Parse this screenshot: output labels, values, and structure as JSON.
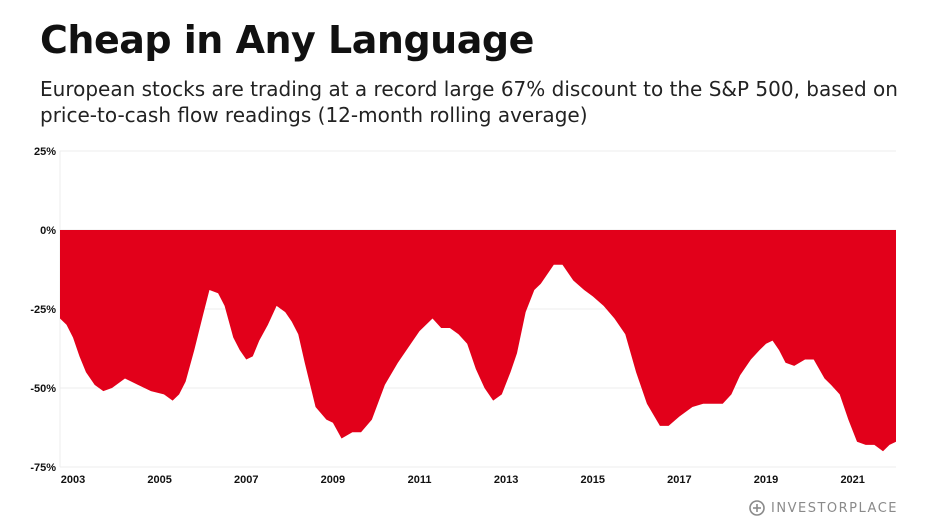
{
  "header": {
    "title": "Cheap in Any Language",
    "subtitle": "European stocks are trading at a record large 67% discount to the S&P 500, based on price-to-cash flow readings (12-month rolling average)"
  },
  "brand": {
    "name": "INVESTORPLACE",
    "icon": "investorplace-logo-icon"
  },
  "colors": {
    "fill": "#e2001a",
    "grid": "#ececec",
    "text": "#111111"
  },
  "chart_data": {
    "type": "area",
    "title": "Cheap in Any Language",
    "ylabel": "",
    "xlabel": "",
    "ylim": [
      -75,
      25
    ],
    "xlim": [
      2002.7,
      2022.0
    ],
    "y_ticks": [
      "25%",
      "0%",
      "-25%",
      "-50%",
      "-75%"
    ],
    "y_tick_values": [
      25,
      0,
      -25,
      -50,
      -75
    ],
    "x_ticks": [
      "2003",
      "2005",
      "2007",
      "2009",
      "2011",
      "2013",
      "2015",
      "2017",
      "2019",
      "2021"
    ],
    "x_tick_values": [
      2003,
      2005,
      2007,
      2009,
      2011,
      2013,
      2015,
      2017,
      2019,
      2021
    ],
    "grid": true,
    "series": [
      {
        "x": [
          2002.7,
          2002.85,
          2003.0,
          2003.15,
          2003.3,
          2003.5,
          2003.7,
          2003.9,
          2004.2,
          2004.5,
          2004.8,
          2005.1,
          2005.3,
          2005.45,
          2005.6,
          2005.8,
          2006.0,
          2006.15,
          2006.35,
          2006.5,
          2006.7,
          2006.85,
          2007.0,
          2007.15,
          2007.3,
          2007.5,
          2007.7,
          2007.9,
          2008.05,
          2008.2,
          2008.35,
          2008.6,
          2008.85,
          2009.0,
          2009.2,
          2009.45,
          2009.65,
          2009.9,
          2010.2,
          2010.5,
          2010.8,
          2011.0,
          2011.3,
          2011.5,
          2011.7,
          2011.9,
          2012.1,
          2012.3,
          2012.5,
          2012.7,
          2012.9,
          2013.1,
          2013.25,
          2013.45,
          2013.65,
          2013.8,
          2013.95,
          2014.1,
          2014.3,
          2014.55,
          2014.8,
          2015.0,
          2015.25,
          2015.5,
          2015.75,
          2016.0,
          2016.25,
          2016.55,
          2016.75,
          2017.0,
          2017.3,
          2017.55,
          2017.8,
          2018.0,
          2018.2,
          2018.4,
          2018.65,
          2018.85,
          2019.0,
          2019.15,
          2019.3,
          2019.45,
          2019.65,
          2019.9,
          2020.1,
          2020.35,
          2020.5,
          2020.7,
          2020.9,
          2021.1,
          2021.3,
          2021.5,
          2021.7,
          2021.85,
          2022.0
        ],
        "values": [
          -28,
          -30,
          -34,
          -40,
          -45,
          -49,
          -51,
          -50,
          -47,
          -49,
          -51,
          -52,
          -54,
          -52,
          -48,
          -38,
          -27,
          -19,
          -20,
          -24,
          -34,
          -38,
          -41,
          -40,
          -35,
          -30,
          -24,
          -26,
          -29,
          -33,
          -42,
          -56,
          -60,
          -61,
          -66,
          -64,
          -64,
          -60,
          -49,
          -42,
          -36,
          -32,
          -28,
          -31,
          -31,
          -33,
          -36,
          -44,
          -50,
          -54,
          -52,
          -45,
          -39,
          -26,
          -19,
          -17,
          -14,
          -11,
          -11,
          -16,
          -19,
          -21,
          -24,
          -28,
          -33,
          -45,
          -55,
          -62,
          -62,
          -59,
          -56,
          -55,
          -55,
          -55,
          -52,
          -46,
          -41,
          -38,
          -36,
          -35,
          -38,
          -42,
          -43,
          -41,
          -41,
          -47,
          -49,
          -52,
          -60,
          -67,
          -68,
          -68,
          -70,
          -68,
          -67
        ]
      }
    ]
  }
}
